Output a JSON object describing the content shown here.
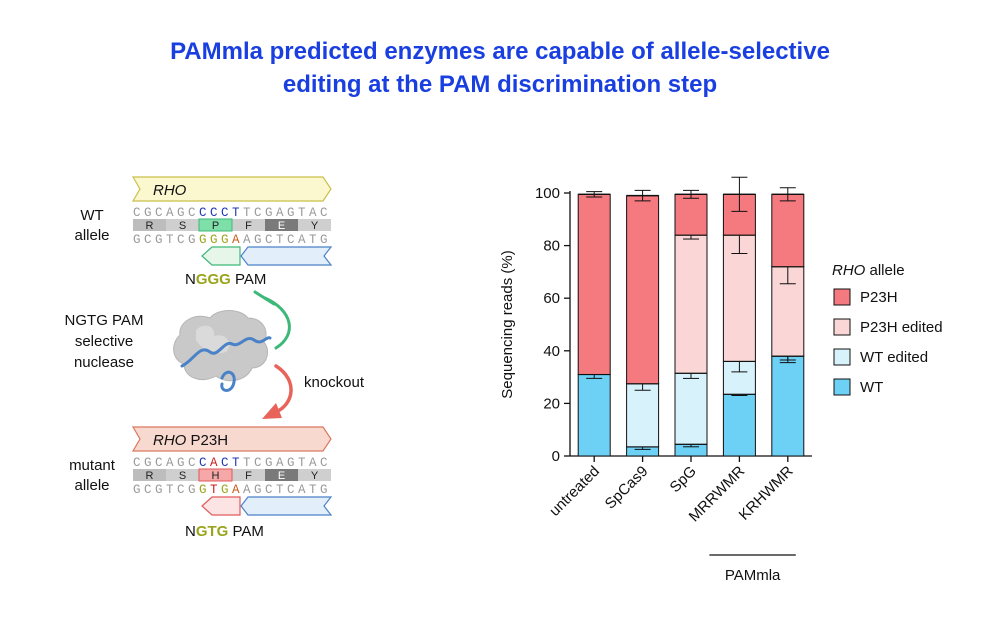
{
  "title": {
    "line1": "PAMmla predicted enzymes are capable of allele-selective",
    "line2": "editing at the PAM discrimination step"
  },
  "colors": {
    "title": "#1a3fe0",
    "P23H": "#f47a7f",
    "P23H_edited": "#fbd6d6",
    "WT_edited": "#d8f2fb",
    "WT": "#6dd0f5",
    "pam_green": "#9aa51c",
    "gene_label_fill": "#fbf7cf",
    "mutant_label_fill": "#f8d9cf",
    "knockout_arrow": "#e8635a",
    "inhibition": "#3cb878",
    "dna_blue": "#4a82c8"
  },
  "diagram": {
    "wt": {
      "gene": "RHO",
      "allele_label_1": "WT",
      "allele_label_2": "allele",
      "top_seq": [
        "C",
        "G",
        "C",
        "A",
        "G",
        "C",
        "C",
        "C",
        "C",
        "T",
        "T",
        "C",
        "G",
        "A",
        "G",
        "T",
        "A",
        "C"
      ],
      "top_colors": [
        "#9a9a9a",
        "#9a9a9a",
        "#9a9a9a",
        "#9a9a9a",
        "#9a9a9a",
        "#9a9a9a",
        "#1f35b8",
        "#1f35b8",
        "#1f35b8",
        "#1f35b8",
        "#9a9a9a",
        "#9a9a9a",
        "#9a9a9a",
        "#9a9a9a",
        "#9a9a9a",
        "#9a9a9a",
        "#9a9a9a",
        "#9a9a9a"
      ],
      "aa": [
        "R",
        "S",
        "P",
        "F",
        "E",
        "Y"
      ],
      "bottom_seq": [
        "G",
        "C",
        "G",
        "T",
        "C",
        "G",
        "G",
        "G",
        "G",
        "A",
        "A",
        "G",
        "C",
        "T",
        "C",
        "A",
        "T",
        "G"
      ],
      "bottom_colors": [
        "#9a9a9a",
        "#9a9a9a",
        "#9a9a9a",
        "#9a9a9a",
        "#9a9a9a",
        "#9a9a9a",
        "#9aa51c",
        "#9aa51c",
        "#9aa51c",
        "#c85a20",
        "#9a9a9a",
        "#9a9a9a",
        "#9a9a9a",
        "#9a9a9a",
        "#9a9a9a",
        "#9a9a9a",
        "#9a9a9a",
        "#9a9a9a"
      ],
      "pam_n": "N",
      "pam_core": "GGG",
      "pam_word": "PAM"
    },
    "mutant": {
      "gene": "RHO",
      "variant": "P23H",
      "allele_label_1": "mutant",
      "allele_label_2": "allele",
      "top_seq": [
        "C",
        "G",
        "C",
        "A",
        "G",
        "C",
        "C",
        "A",
        "C",
        "T",
        "T",
        "C",
        "G",
        "A",
        "G",
        "T",
        "A",
        "C"
      ],
      "top_colors": [
        "#9a9a9a",
        "#9a9a9a",
        "#9a9a9a",
        "#9a9a9a",
        "#9a9a9a",
        "#9a9a9a",
        "#1f35b8",
        "#c81e1e",
        "#1f35b8",
        "#1f35b8",
        "#9a9a9a",
        "#9a9a9a",
        "#9a9a9a",
        "#9a9a9a",
        "#9a9a9a",
        "#9a9a9a",
        "#9a9a9a",
        "#9a9a9a"
      ],
      "aa": [
        "R",
        "S",
        "H",
        "F",
        "E",
        "Y"
      ],
      "bottom_seq": [
        "G",
        "C",
        "G",
        "T",
        "C",
        "G",
        "G",
        "T",
        "G",
        "A",
        "A",
        "G",
        "C",
        "T",
        "C",
        "A",
        "T",
        "G"
      ],
      "bottom_colors": [
        "#9a9a9a",
        "#9a9a9a",
        "#9a9a9a",
        "#9a9a9a",
        "#9a9a9a",
        "#9a9a9a",
        "#9aa51c",
        "#c81e1e",
        "#9aa51c",
        "#c85a20",
        "#9a9a9a",
        "#9a9a9a",
        "#9a9a9a",
        "#9a9a9a",
        "#9a9a9a",
        "#9a9a9a",
        "#9a9a9a",
        "#9a9a9a"
      ],
      "pam_n": "N",
      "pam_core": "GTG",
      "pam_word": "PAM"
    },
    "nuclease_label": [
      "NGTG PAM",
      "selective",
      "nuclease"
    ],
    "knockout_label": "knockout"
  },
  "chart_data": {
    "type": "bar",
    "stacked": true,
    "categories": [
      "untreated",
      "SpCas9",
      "SpG",
      "MRRWMR",
      "KRHWMR"
    ],
    "ylabel": "Sequencing reads (%)",
    "ylim": [
      0,
      100
    ],
    "yticks": [
      0,
      20,
      40,
      60,
      80,
      100
    ],
    "group_label": "PAMmla",
    "group_categories": [
      "MRRWMR",
      "KRHWMR"
    ],
    "legend_title_italic": "RHO",
    "legend_title_rest": " allele",
    "legend_position": "right",
    "series": [
      {
        "name": "WT",
        "color": "#6dd0f5",
        "values": [
          31,
          3.5,
          4.5,
          23.5,
          38
        ],
        "err": [
          1.5,
          1,
          1,
          0.5,
          2.5
        ]
      },
      {
        "name": "WT edited",
        "color": "#d8f2fb",
        "values": [
          0,
          24,
          27,
          12.5,
          0
        ],
        "err": [
          0,
          2.5,
          2,
          4,
          1.5
        ]
      },
      {
        "name": "P23H edited",
        "color": "#fbd6d6",
        "values": [
          0,
          0,
          52.5,
          48,
          34
        ],
        "err": [
          0,
          0,
          1.5,
          7,
          6.5
        ]
      },
      {
        "name": "P23H",
        "color": "#f47a7f",
        "values": [
          68.5,
          71.5,
          15.5,
          15.5,
          27.5
        ],
        "err": [
          1,
          2,
          1.5,
          6.5,
          2.5
        ]
      }
    ]
  }
}
